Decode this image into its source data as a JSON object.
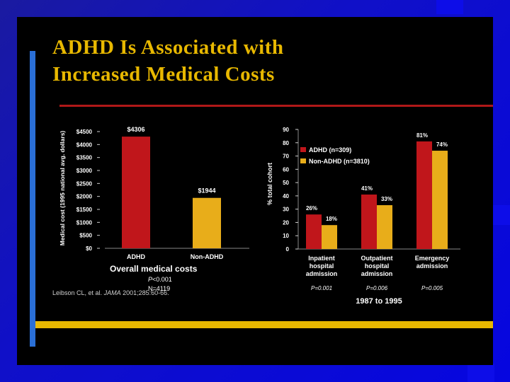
{
  "title": {
    "line1": "ADHD Is Associated with",
    "line2": "Increased Medical Costs"
  },
  "colors": {
    "adhd": "#c0161b",
    "non_adhd": "#e8ad1a",
    "slide_bg": "#000000",
    "title": "#e8b800",
    "accent_bar": "#e8b800",
    "side_bar": "#2a6fd6"
  },
  "citation": {
    "prefix": "Leibson CL, et al.",
    "journal": "JAMA",
    "suffix": "2001;285:60-66."
  },
  "chart_data": [
    {
      "type": "bar",
      "ylabel": "Medical cost (1995 national avg. dollars)",
      "ylim": [
        0,
        4500
      ],
      "yticks": [
        "$4500",
        "$4000",
        "$3500",
        "$3000",
        "$2500",
        "$2000",
        "$1500",
        "$1000",
        "$500",
        "$0"
      ],
      "ytick_values": [
        4500,
        4000,
        3500,
        3000,
        2500,
        2000,
        1500,
        1000,
        500,
        0
      ],
      "categories": [
        "ADHD",
        "Non-ADHD"
      ],
      "values": [
        4306,
        1944
      ],
      "value_labels": [
        "$4306",
        "$1944"
      ],
      "caption": "Overall medical costs",
      "p_prefix": "P",
      "p_value": "<0.001",
      "n_label": "N=4119"
    },
    {
      "type": "bar",
      "ylabel": "% total cohort",
      "ylim": [
        0,
        90
      ],
      "yticks": [
        "90",
        "80",
        "70",
        "60",
        "50",
        "40",
        "30",
        "20",
        "10",
        "0"
      ],
      "ytick_values": [
        90,
        80,
        70,
        60,
        50,
        40,
        30,
        20,
        10,
        0
      ],
      "categories": [
        [
          "Inpatient",
          "hospital",
          "admission"
        ],
        [
          "Outpatient",
          "hospital",
          "admission"
        ],
        [
          "Emergency",
          "admission"
        ]
      ],
      "series": [
        {
          "name": "ADHD (n=309)",
          "values": [
            26,
            41,
            81
          ],
          "labels": [
            "26%",
            "41%",
            "81%"
          ]
        },
        {
          "name": "Non-ADHD (n=3810)",
          "values": [
            18,
            33,
            74
          ],
          "labels": [
            "18%",
            "33%",
            "74%"
          ]
        }
      ],
      "p_values": [
        "P=0.001",
        "P=0.006",
        "P=0.005"
      ],
      "legend_position": "top-left",
      "caption": "1987 to 1995"
    }
  ]
}
